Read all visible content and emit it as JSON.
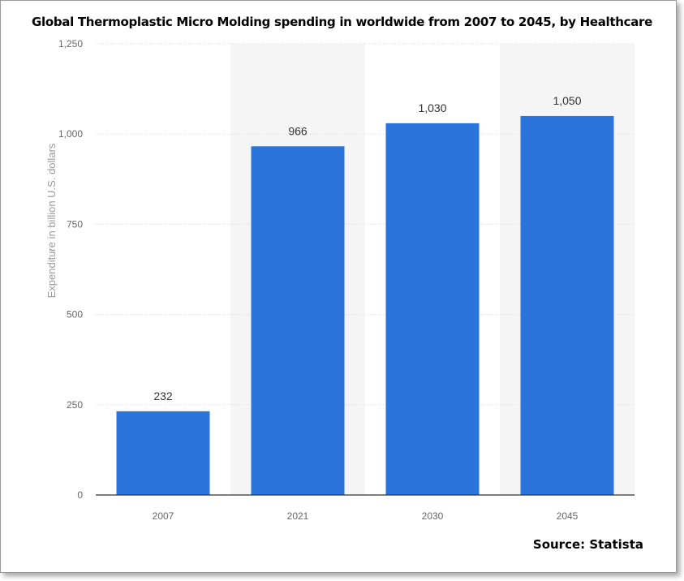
{
  "chart_data": {
    "type": "bar",
    "title": "Global Thermoplastic Micro Molding spending in worldwide from 2007 to 2045, by Healthcare",
    "categories": [
      "2007",
      "2021",
      "2030",
      "2045"
    ],
    "values": [
      232,
      966,
      1030,
      1050
    ],
    "value_labels": [
      "232",
      "966",
      "1,030",
      "1,050"
    ],
    "ylabel": "Expenditure in billion U.S. dollars",
    "xlabel": "",
    "ylim": [
      0,
      1250
    ],
    "yticks": [
      0,
      250,
      500,
      750,
      1000,
      1250
    ],
    "ytick_labels": [
      "0",
      "250",
      "500",
      "750",
      "1,000",
      "1,250"
    ],
    "grid": true,
    "source": "Source: Statista",
    "colors": {
      "bar": "#2a74db",
      "band": "#f5f5f5",
      "grid": "#d8d8d8",
      "axis": "#333333"
    }
  }
}
